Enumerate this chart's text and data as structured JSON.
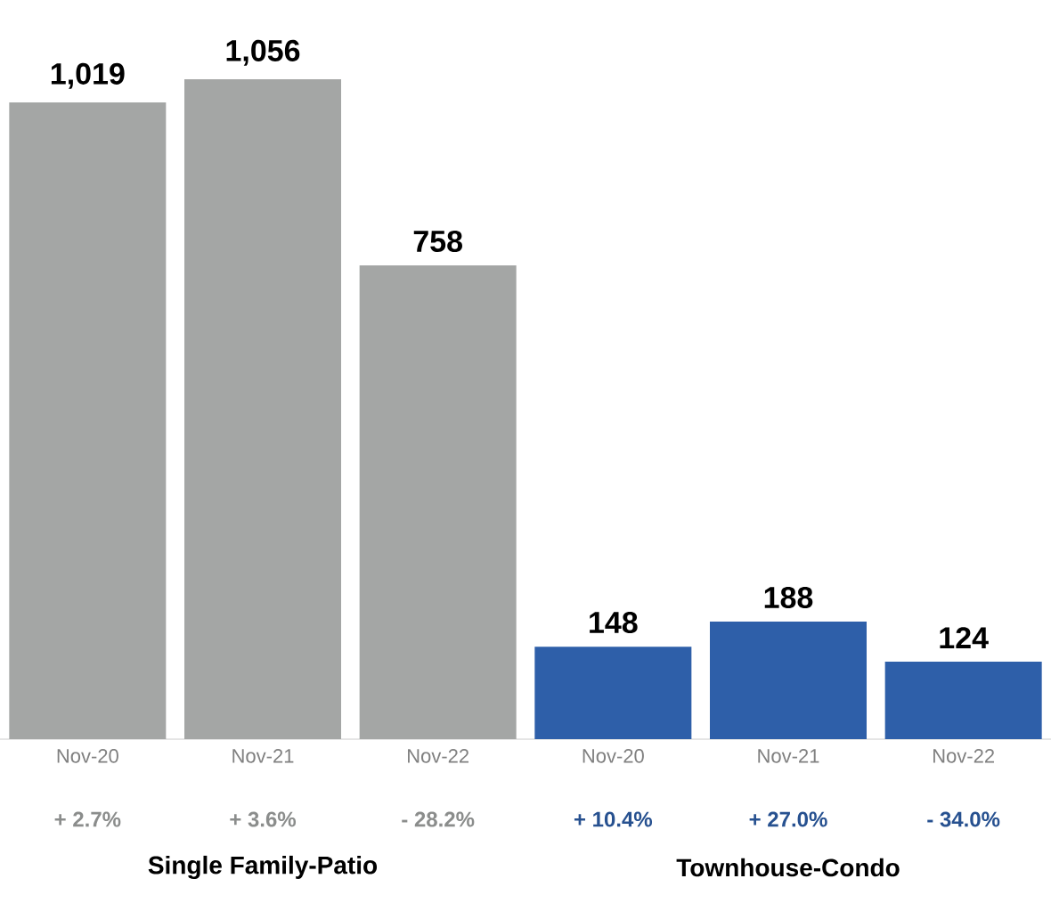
{
  "chart_data": {
    "type": "bar",
    "categories": [
      "Nov-20",
      "Nov-21",
      "Nov-22",
      "Nov-20",
      "Nov-21",
      "Nov-22"
    ],
    "values": [
      1019,
      1056,
      758,
      148,
      188,
      124
    ],
    "colors": [
      "#a4a6a5",
      "#a4a6a5",
      "#a4a6a5",
      "#2e5fa9",
      "#2e5fa9",
      "#2e5fa9"
    ],
    "value_labels": [
      "1,019",
      "1,056",
      "758",
      "148",
      "188",
      "124"
    ],
    "annotations": [
      "+ 2.7%",
      "+ 3.6%",
      "- 28.2%",
      "+ 10.4%",
      "+ 27.0%",
      "- 34.0%",
      "Single Family-Patio",
      "Townhouse-Condo"
    ]
  }
}
